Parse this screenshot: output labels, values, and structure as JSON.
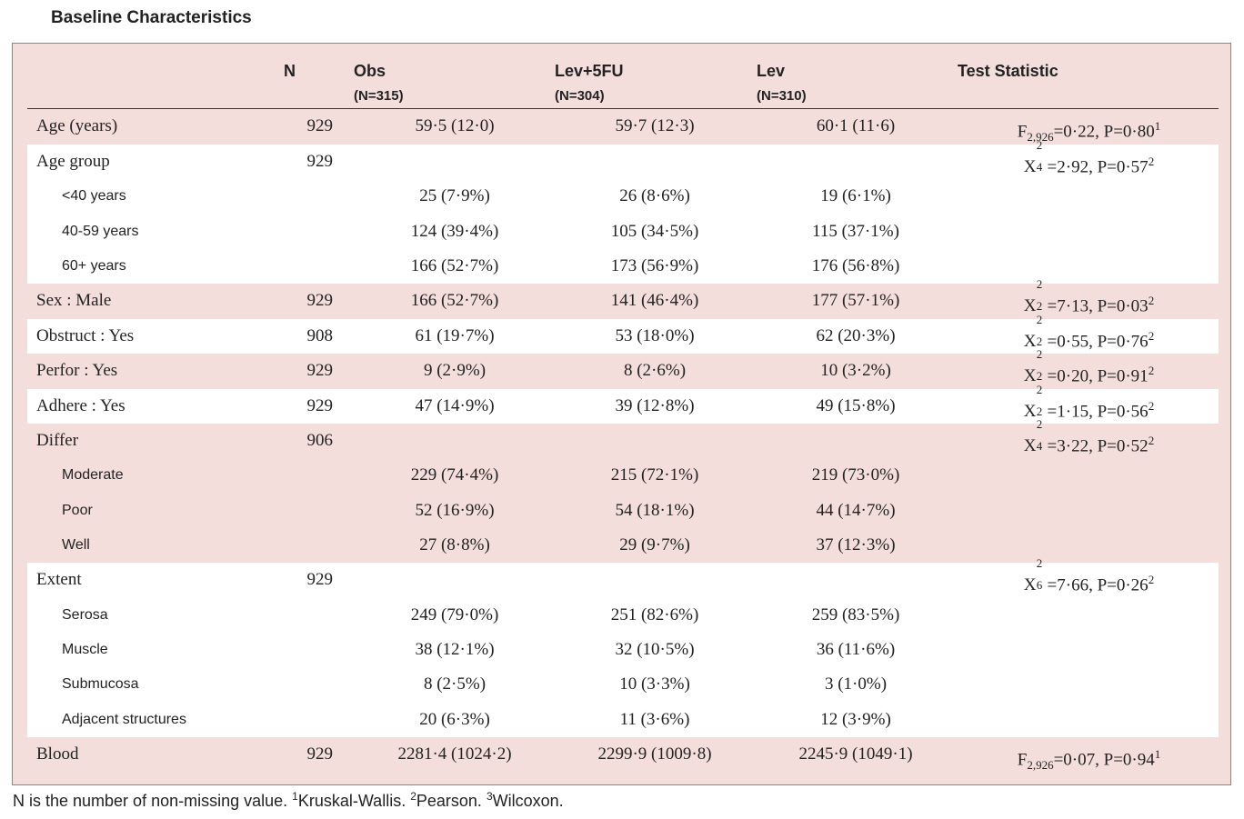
{
  "title": "Baseline Characteristics",
  "headers": {
    "n": "N",
    "obs": "Obs",
    "obs_n": "(N=315)",
    "lev5fu": "Lev+5FU",
    "lev5fu_n": "(N=304)",
    "lev": "Lev",
    "lev_n": "(N=310)",
    "test": "Test Statistic"
  },
  "rows": {
    "age": {
      "label": "Age (years)",
      "n": "929",
      "obs": "59·5 (12·0)",
      "lev5fu": "59·7 (12·3)",
      "lev": "60·1 (11·6)",
      "test_pre": "F",
      "test_sub": "2,926",
      "test_post": "=0·22, P=0·80",
      "test_sup": "1"
    },
    "agegroup": {
      "label": "Age group",
      "n": "929",
      "test_x": "X",
      "test_sp": "2",
      "test_sb": "4",
      "test_post": "=2·92, P=0·57",
      "test_sup": "2"
    },
    "lt40": {
      "label": "<40 years",
      "obs": "25 (7·9%)",
      "lev5fu": "26 (8·6%)",
      "lev": "19 (6·1%)"
    },
    "a4059": {
      "label": "40-59 years",
      "obs": "124 (39·4%)",
      "lev5fu": "105 (34·5%)",
      "lev": "115 (37·1%)"
    },
    "a60": {
      "label": "60+ years",
      "obs": "166 (52·7%)",
      "lev5fu": "173 (56·9%)",
      "lev": "176 (56·8%)"
    },
    "sex": {
      "label": "Sex : Male",
      "n": "929",
      "obs": "166 (52·7%)",
      "lev5fu": "141 (46·4%)",
      "lev": "177 (57·1%)",
      "test_x": "X",
      "test_sp": "2",
      "test_sb": "2",
      "test_post": "=7·13, P=0·03",
      "test_sup": "2"
    },
    "obstruct": {
      "label": "Obstruct : Yes",
      "n": "908",
      "obs": "61 (19·7%)",
      "lev5fu": "53 (18·0%)",
      "lev": "62 (20·3%)",
      "test_x": "X",
      "test_sp": "2",
      "test_sb": "2",
      "test_post": "=0·55, P=0·76",
      "test_sup": "2"
    },
    "perfor": {
      "label": "Perfor : Yes",
      "n": "929",
      "obs": "9 (2·9%)",
      "lev5fu": "8 (2·6%)",
      "lev": "10 (3·2%)",
      "test_x": "X",
      "test_sp": "2",
      "test_sb": "2",
      "test_post": "=0·20, P=0·91",
      "test_sup": "2"
    },
    "adhere": {
      "label": "Adhere : Yes",
      "n": "929",
      "obs": "47 (14·9%)",
      "lev5fu": "39 (12·8%)",
      "lev": "49 (15·8%)",
      "test_x": "X",
      "test_sp": "2",
      "test_sb": "2",
      "test_post": "=1·15, P=0·56",
      "test_sup": "2"
    },
    "differ": {
      "label": "Differ",
      "n": "906",
      "test_x": "X",
      "test_sp": "2",
      "test_sb": "4",
      "test_post": "=3·22, P=0·52",
      "test_sup": "2"
    },
    "moderate": {
      "label": "Moderate",
      "obs": "229 (74·4%)",
      "lev5fu": "215 (72·1%)",
      "lev": "219 (73·0%)"
    },
    "poor": {
      "label": "Poor",
      "obs": "52 (16·9%)",
      "lev5fu": "54 (18·1%)",
      "lev": "44 (14·7%)"
    },
    "well": {
      "label": "Well",
      "obs": "27 (8·8%)",
      "lev5fu": "29 (9·7%)",
      "lev": "37 (12·3%)"
    },
    "extent": {
      "label": "Extent",
      "n": "929",
      "test_x": "X",
      "test_sp": "2",
      "test_sb": "6",
      "test_post": "=7·66, P=0·26",
      "test_sup": "2"
    },
    "serosa": {
      "label": "Serosa",
      "obs": "249 (79·0%)",
      "lev5fu": "251 (82·6%)",
      "lev": "259 (83·5%)"
    },
    "muscle": {
      "label": "Muscle",
      "obs": "38 (12·1%)",
      "lev5fu": "32 (10·5%)",
      "lev": "36 (11·6%)"
    },
    "submucosa": {
      "label": "Submucosa",
      "obs": "8 (2·5%)",
      "lev5fu": "10 (3·3%)",
      "lev": "3 (1·0%)"
    },
    "adjacent": {
      "label": "Adjacent structures",
      "obs": "20 (6·3%)",
      "lev5fu": "11 (3·6%)",
      "lev": "12 (3·9%)"
    },
    "blood": {
      "label": "Blood",
      "n": "929",
      "obs": "2281·4 (1024·2)",
      "lev5fu": "2299·9 (1009·8)",
      "lev": "2245·9 (1049·1)",
      "test_pre": "F",
      "test_sub": "2,926",
      "test_post": "=0·07, P=0·94",
      "test_sup": "1"
    }
  },
  "footnote": {
    "text1": "N is the number of non-missing value. ",
    "sup1": "1",
    "text2": "Kruskal-Wallis. ",
    "sup2": "2",
    "text3": "Pearson. ",
    "sup3": "3",
    "text4": "Wilcoxon."
  },
  "colors": {
    "panel_bg": "#f4dedb",
    "panel_border": "#b56f86",
    "band_bg": "#ffffff"
  }
}
